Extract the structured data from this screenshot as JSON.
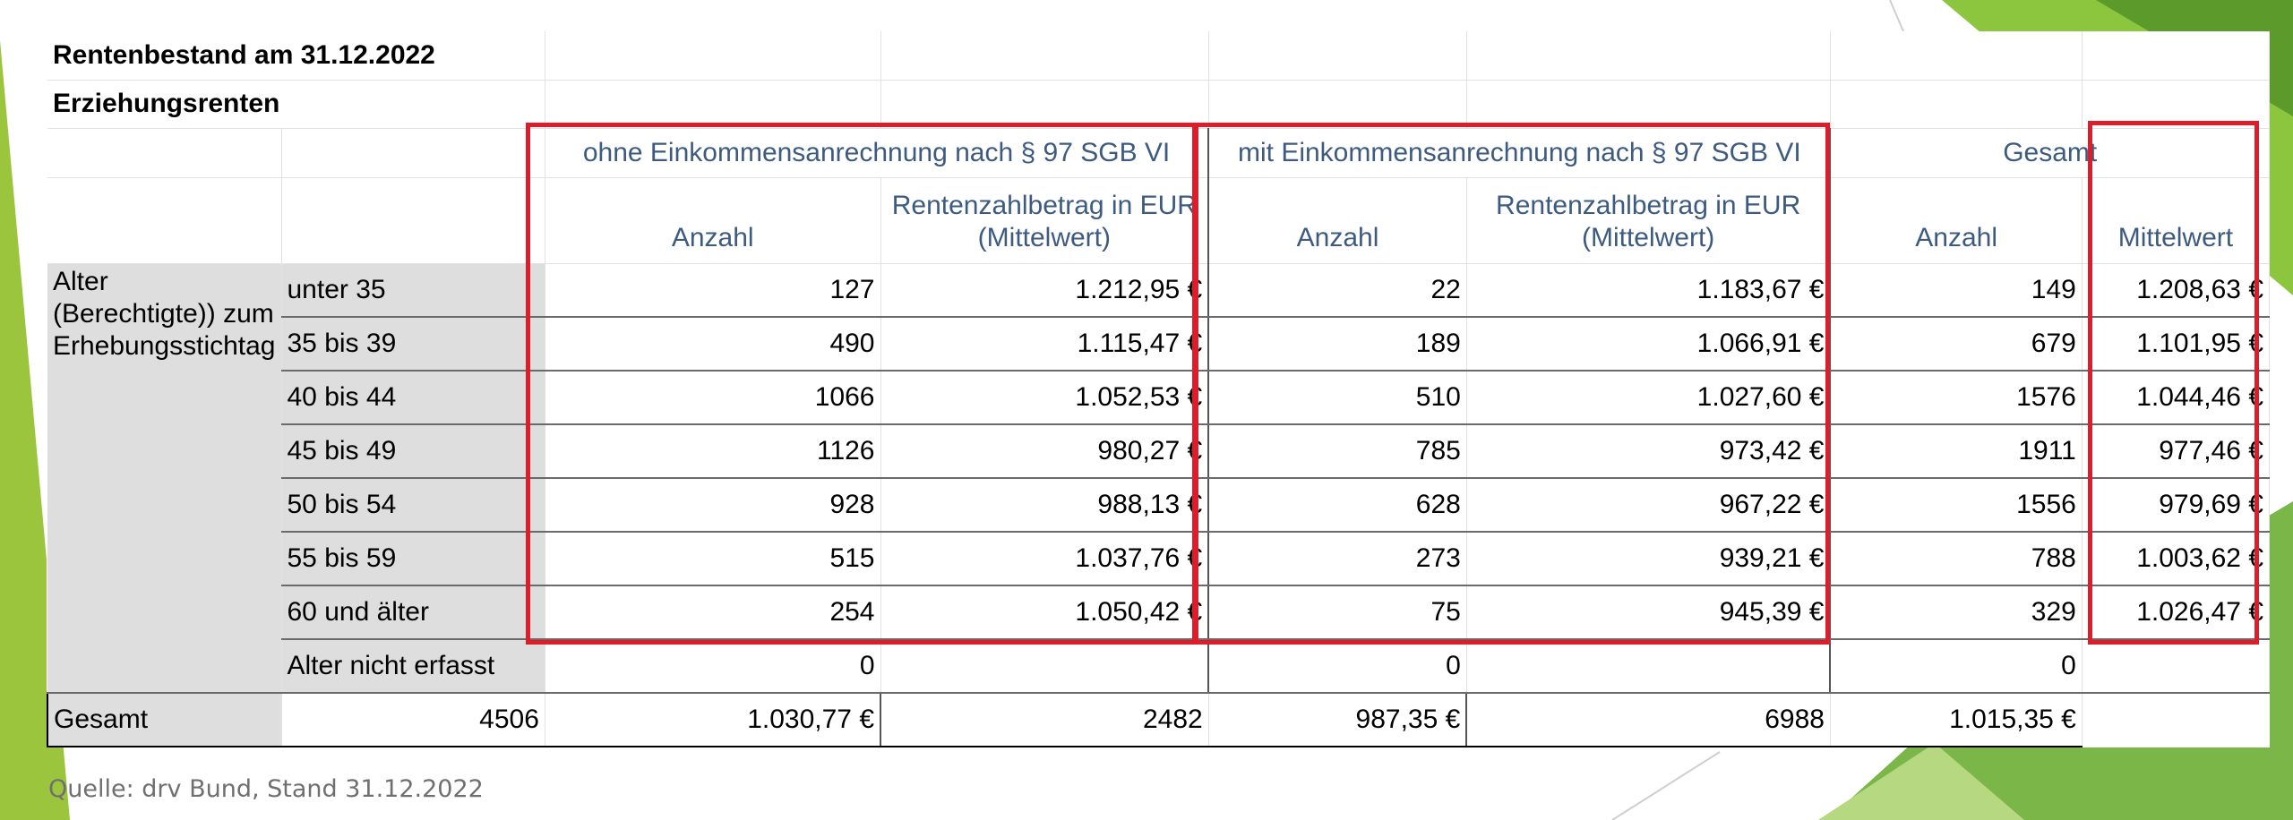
{
  "title": "Rentenbestand am 31.12.2022",
  "subtitle": "Erziehungsrenten",
  "groups": {
    "ohne": "ohne Einkommensanrechnung nach § 97 SGB VI",
    "mit": "mit Einkommensanrechnung nach § 97 SGB VI",
    "gesamt": "Gesamt"
  },
  "headers": {
    "anzahl": "Anzahl",
    "rentenzahlbetrag": "Rentenzahlbetrag in EUR (Mittelwert)",
    "mittelwert": "Mittelwert"
  },
  "row_label": "Alter (Berechtigte)) zum Erhebungsstichtag",
  "rows": [
    {
      "age": "unter 35",
      "ohne_anzahl": "127",
      "ohne_betrag": "1.212,95 €",
      "mit_anzahl": "22",
      "mit_betrag": "1.183,67 €",
      "ges_anzahl": "149",
      "ges_mittel": "1.208,63 €"
    },
    {
      "age": "35 bis 39",
      "ohne_anzahl": "490",
      "ohne_betrag": "1.115,47 €",
      "mit_anzahl": "189",
      "mit_betrag": "1.066,91 €",
      "ges_anzahl": "679",
      "ges_mittel": "1.101,95 €"
    },
    {
      "age": "40 bis 44",
      "ohne_anzahl": "1066",
      "ohne_betrag": "1.052,53 €",
      "mit_anzahl": "510",
      "mit_betrag": "1.027,60 €",
      "ges_anzahl": "1576",
      "ges_mittel": "1.044,46 €"
    },
    {
      "age": "45 bis 49",
      "ohne_anzahl": "1126",
      "ohne_betrag": "980,27 €",
      "mit_anzahl": "785",
      "mit_betrag": "973,42 €",
      "ges_anzahl": "1911",
      "ges_mittel": "977,46 €"
    },
    {
      "age": "50 bis 54",
      "ohne_anzahl": "928",
      "ohne_betrag": "988,13 €",
      "mit_anzahl": "628",
      "mit_betrag": "967,22 €",
      "ges_anzahl": "1556",
      "ges_mittel": "979,69 €"
    },
    {
      "age": "55 bis 59",
      "ohne_anzahl": "515",
      "ohne_betrag": "1.037,76 €",
      "mit_anzahl": "273",
      "mit_betrag": "939,21 €",
      "ges_anzahl": "788",
      "ges_mittel": "1.003,62 €"
    },
    {
      "age": "60 und älter",
      "ohne_anzahl": "254",
      "ohne_betrag": "1.050,42 €",
      "mit_anzahl": "75",
      "mit_betrag": "945,39 €",
      "ges_anzahl": "329",
      "ges_mittel": "1.026,47 €"
    },
    {
      "age": "Alter nicht erfasst",
      "ohne_anzahl": "0",
      "ohne_betrag": "",
      "mit_anzahl": "0",
      "mit_betrag": "",
      "ges_anzahl": "0",
      "ges_mittel": ""
    }
  ],
  "total": {
    "age": "Gesamt",
    "ohne_anzahl": "4506",
    "ohne_betrag": "1.030,77 €",
    "mit_anzahl": "2482",
    "mit_betrag": "987,35 €",
    "ges_anzahl": "6988",
    "ges_mittel": "1.015,35 €"
  },
  "source": "Quelle: drv Bund, Stand 31.12.2022",
  "colors": {
    "highlight_box": "#dd1e2a",
    "header_text": "#3d5a80",
    "label_fill": "#dedede",
    "deco_green_light": "#9bc53d",
    "deco_green_dark": "#5c9a2b"
  }
}
